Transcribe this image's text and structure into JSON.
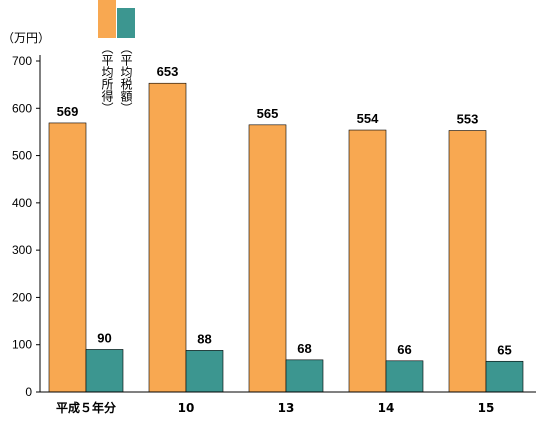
{
  "chart_data": {
    "type": "bar",
    "y_label": "（万円）",
    "categories": [
      "平成５年分",
      "10",
      "13",
      "14",
      "15"
    ],
    "series": [
      {
        "name": "（平均所得）",
        "color": "#f8a851",
        "values": [
          569,
          653,
          565,
          554,
          553
        ]
      },
      {
        "name": "（平均税額）",
        "color": "#3c9690",
        "values": [
          90,
          88,
          68,
          66,
          65
        ]
      }
    ],
    "ylim": [
      0,
      700
    ],
    "yticks": [
      0,
      100,
      200,
      300,
      400,
      500,
      600,
      700
    ]
  }
}
